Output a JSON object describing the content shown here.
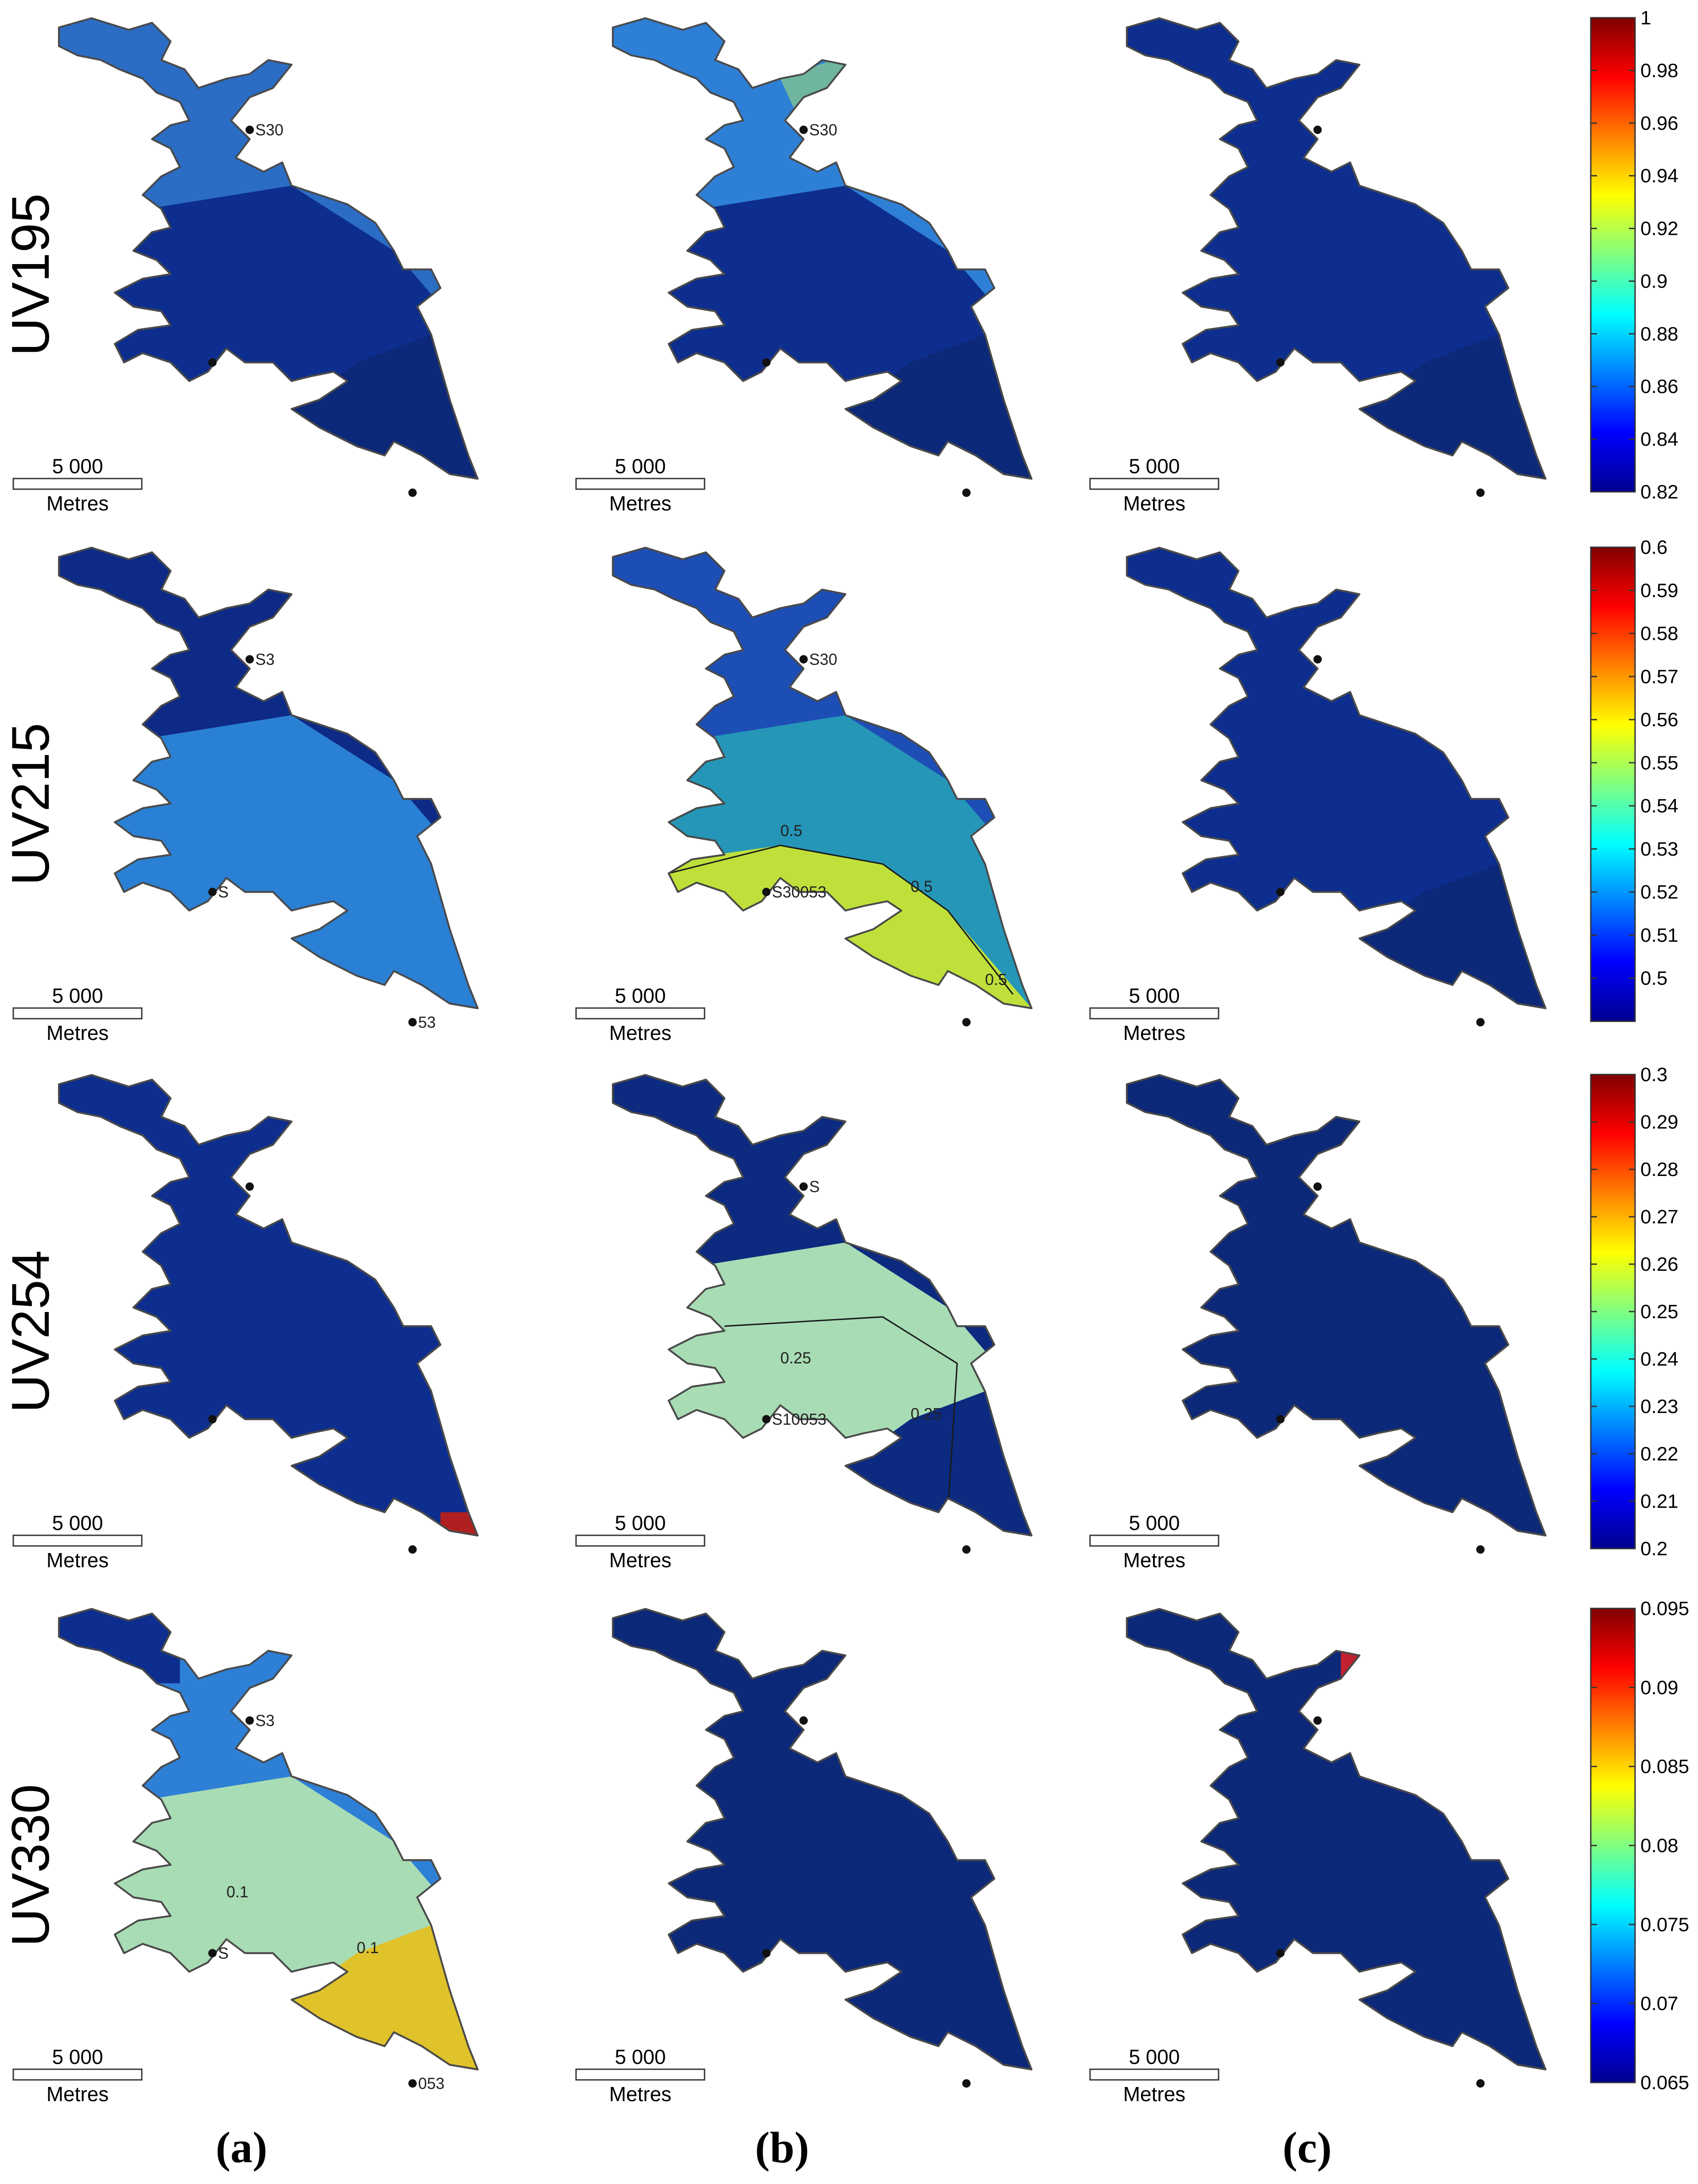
{
  "rows": [
    {
      "label": "UV195",
      "colorbar": {
        "min": 0.82,
        "max": 1,
        "ticks": [
          "1",
          "0.98",
          "0.96",
          "0.94",
          "0.92",
          "0.9",
          "0.88",
          "0.86",
          "0.84",
          "0.82"
        ]
      },
      "panels": [
        {
          "zones": [
            "#2b6cc4",
            "#0d2e8e",
            "#0c2878"
          ],
          "stations": [
            "S30",
            "",
            ""
          ],
          "iso_labels": []
        },
        {
          "zones": [
            "#2e7fd6",
            "#0d2e8e",
            "#0c2878"
          ],
          "extra_zone": "#6fb5a0",
          "stations": [
            "S30",
            "",
            ""
          ],
          "iso_labels": []
        },
        {
          "zones": [
            "#0d2e8e",
            "#0d2e8e",
            "#0c2878"
          ],
          "stations": [
            "",
            "",
            ""
          ],
          "iso_labels": []
        }
      ]
    },
    {
      "label": "UV215",
      "colorbar": {
        "min": 0.49,
        "max": 0.6,
        "ticks": [
          "0.6",
          "0.59",
          "0.58",
          "0.57",
          "0.56",
          "0.55",
          "0.54",
          "0.53",
          "0.52",
          "0.51",
          "0.5"
        ]
      },
      "panels": [
        {
          "zones": [
            "#0d2a86",
            "#2a80d4",
            "#2a80d4"
          ],
          "stations": [
            "S3",
            "S",
            "53"
          ],
          "iso_labels": []
        },
        {
          "zones": [
            "#1d4eb5",
            "#2596b8",
            "#bfe03a"
          ],
          "stations": [
            "S30",
            "S30053",
            ""
          ],
          "iso_labels": [
            "0.5",
            "0.5",
            "0.5"
          ]
        },
        {
          "zones": [
            "#0d2e8e",
            "#0d2e8e",
            "#0c2878"
          ],
          "stations": [
            "",
            "",
            ""
          ],
          "iso_labels": []
        }
      ]
    },
    {
      "label": "UV254",
      "colorbar": {
        "min": 0.2,
        "max": 0.3,
        "ticks": [
          "0.3",
          "0.29",
          "0.28",
          "0.27",
          "0.26",
          "0.25",
          "0.24",
          "0.23",
          "0.22",
          "0.21",
          "0.2"
        ]
      },
      "panels": [
        {
          "zones": [
            "#0d2e8e",
            "#0d2e8e",
            "#0d2e8e"
          ],
          "extra_zone": "#b02020",
          "stations": [
            "",
            "",
            ""
          ],
          "iso_labels": []
        },
        {
          "zones": [
            "#0c2a80",
            "#a8dcb4",
            "#0c2a80"
          ],
          "stations": [
            "S",
            "S10053",
            ""
          ],
          "iso_labels": [
            "0.25",
            "0.25"
          ]
        },
        {
          "zones": [
            "#0c2878",
            "#0c2878",
            "#0c2878"
          ],
          "stations": [
            "",
            "",
            ""
          ],
          "iso_labels": []
        }
      ]
    },
    {
      "label": "UV330",
      "colorbar": {
        "min": 0.065,
        "max": 0.095,
        "ticks": [
          "0.095",
          "0.09",
          "0.085",
          "0.08",
          "0.075",
          "0.07",
          "0.065"
        ]
      },
      "panels": [
        {
          "zones": [
            "#2e7fd6",
            "#a8dcb4",
            "#e0c22a"
          ],
          "extra_zone": "#0d2e8e",
          "stations": [
            "S3",
            "S",
            "053"
          ],
          "iso_labels": [
            "0.1",
            "0.1"
          ]
        },
        {
          "zones": [
            "#0c2878",
            "#0c2878",
            "#0c2878"
          ],
          "stations": [
            "",
            "",
            ""
          ],
          "iso_labels": []
        },
        {
          "zones": [
            "#0c2878",
            "#0c2878",
            "#0c2878"
          ],
          "extra_zone": "#c02030",
          "stations": [
            "",
            "",
            ""
          ],
          "iso_labels": []
        }
      ]
    }
  ],
  "scale_bar": {
    "distance": "5 000",
    "unit": "Metres"
  },
  "panel_labels": [
    "(a)",
    "(b)",
    "(c)"
  ]
}
